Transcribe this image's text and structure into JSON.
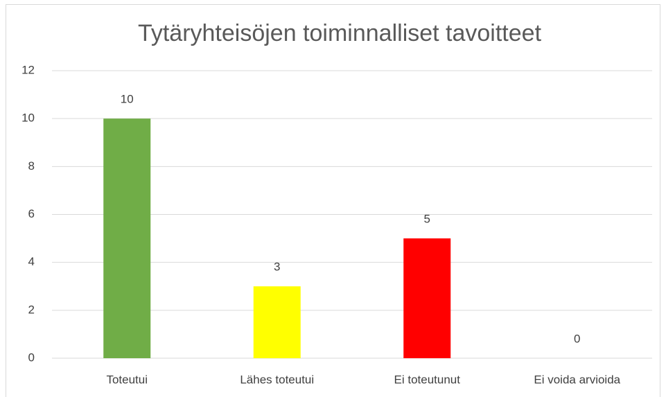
{
  "chart_data": {
    "type": "bar",
    "title": "Tytäryhteisöjen toiminnalliset tavoitteet",
    "categories": [
      "Toteutui",
      "Lähes toteutui",
      "Ei toteutunut",
      "Ei voida arvioida"
    ],
    "values": [
      10,
      3,
      5,
      0
    ],
    "colors": [
      "#70ad47",
      "#ffff00",
      "#ff0000",
      "#a5a5a5"
    ],
    "ylim": [
      0,
      12
    ],
    "yticks": [
      0,
      2,
      4,
      6,
      8,
      10,
      12
    ],
    "grid": true
  }
}
